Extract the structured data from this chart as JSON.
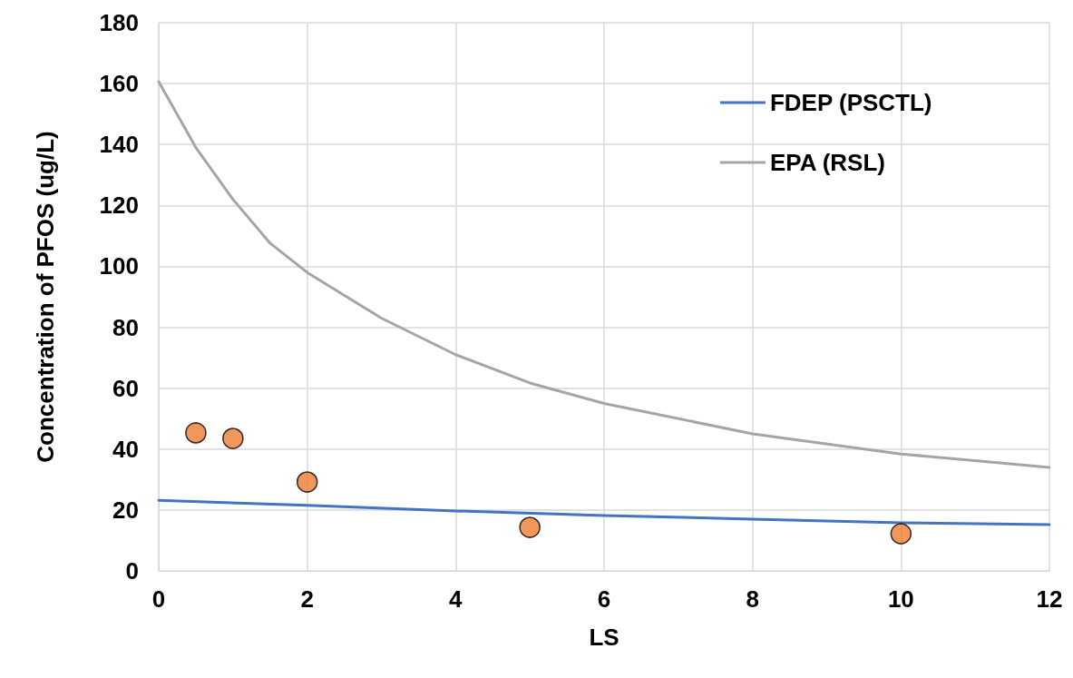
{
  "chart_data": {
    "type": "line",
    "xlabel": "LS",
    "ylabel": "Concentration of PFOS (ug/L)",
    "xlim": [
      0,
      12
    ],
    "xticks": [
      0,
      2,
      4,
      6,
      8,
      10,
      12
    ],
    "ylim": [
      0,
      180
    ],
    "yticks": [
      0,
      20,
      40,
      60,
      80,
      100,
      120,
      140,
      160,
      180
    ],
    "grid": true,
    "legend": "top right",
    "line_style": "solid",
    "series": [
      {
        "name": "FDEP (PSCTL)",
        "color": "#4472c4",
        "marker": "none",
        "x": [
          0,
          2,
          4,
          6,
          8,
          10,
          12
        ],
        "values": [
          23.2,
          21.5,
          19.7,
          18.2,
          17,
          15.8,
          15.2
        ]
      },
      {
        "name": "EPA (RSL)",
        "color": "#a5a5a5",
        "marker": "none",
        "x": [
          0,
          0.5,
          1,
          1.5,
          2,
          3,
          4,
          5,
          6,
          8,
          10,
          12
        ],
        "values": [
          160.6,
          139,
          122,
          107.6,
          98,
          83,
          71,
          61.7,
          55,
          45,
          38.4,
          34
        ]
      },
      {
        "type": "scatter",
        "color": "#ed7d31",
        "marker": "circle",
        "x": [
          0.5,
          1,
          2,
          5,
          10
        ],
        "values": [
          45.3,
          43.5,
          29.2,
          14.3,
          12.2
        ]
      }
    ]
  }
}
